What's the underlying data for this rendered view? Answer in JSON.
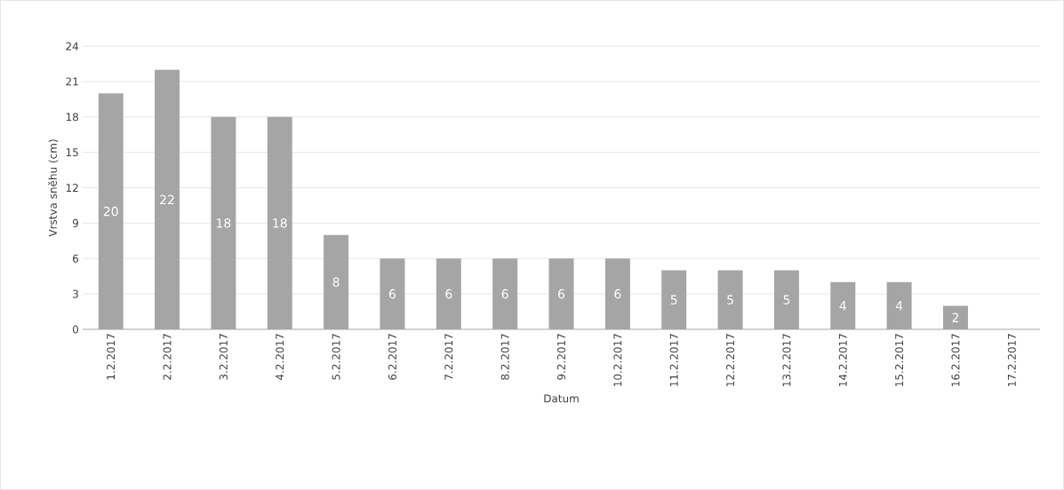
{
  "chart_data": {
    "type": "bar",
    "xlabel": "Datum",
    "ylabel": "Vrstva sněhu (cm)",
    "categories": [
      "1.2.2017",
      "2.2.2017",
      "3.2.2017",
      "4.2.2017",
      "5.2.2017",
      "6.2.2017",
      "7.2.2017",
      "8.2.2017",
      "9.2.2017",
      "10.2.2017",
      "11.2.2017",
      "12.2.2017",
      "13.2.2017",
      "14.2.2017",
      "15.2.2017",
      "16.2.2017",
      "17.2.2017"
    ],
    "values": [
      20,
      22,
      18,
      18,
      8,
      6,
      6,
      6,
      6,
      6,
      5,
      5,
      5,
      4,
      4,
      2,
      0
    ],
    "value_labels": [
      "20",
      "22",
      "18",
      "18",
      "8",
      "6",
      "6",
      "6",
      "6",
      "6",
      "5",
      "5",
      "5",
      "4",
      "4",
      "2",
      null
    ],
    "color": "#a5a5a5",
    "ylim": [
      0,
      24
    ],
    "yticks": [
      0,
      3,
      6,
      9,
      12,
      15,
      18,
      21,
      24
    ],
    "grid": "y"
  }
}
